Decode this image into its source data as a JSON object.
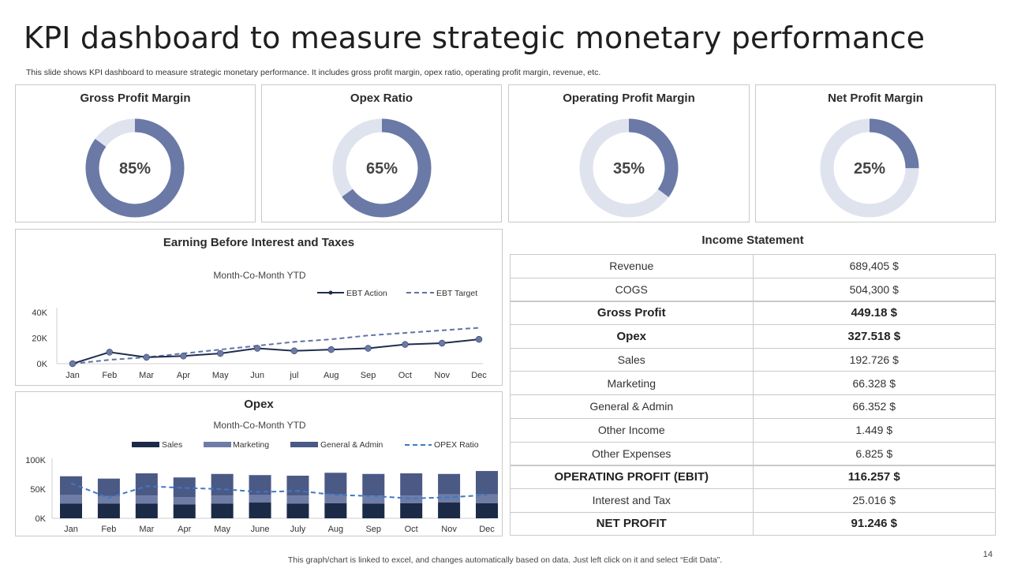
{
  "header": {
    "title": "KPI dashboard to measure strategic monetary performance",
    "subtitle": "This slide shows KPI dashboard to measure strategic monetary performance. It includes gross profit margin, opex ratio, operating profit margin, revenue, etc."
  },
  "kpis": [
    {
      "label": "Gross Profit Margin",
      "value": 85,
      "display": "85%"
    },
    {
      "label": "Opex Ratio",
      "value": 65,
      "display": "65%"
    },
    {
      "label": "Operating Profit Margin",
      "value": 35,
      "display": "35%"
    },
    {
      "label": "Net Profit Margin",
      "value": 25,
      "display": "25%"
    }
  ],
  "colors": {
    "donut_fill": "#6a79a6",
    "donut_track": "#dfe3ee",
    "line_actual": "#1f2d4f",
    "line_target": "#6073a0",
    "bar_sales": "#1b2a47",
    "bar_marketing": "#6e7ca6",
    "bar_general": "#4b5985",
    "opex_ratio": "#3d79c4"
  },
  "chart_data": [
    {
      "type": "line",
      "title": "Earning Before Interest  and Taxes",
      "subtitle": "Month-Co-Month  YTD",
      "categories": [
        "Jan",
        "Feb",
        "Mar",
        "Apr",
        "May",
        "Jun",
        "jul",
        "Aug",
        "Sep",
        "Oct",
        "Nov",
        "Dec"
      ],
      "series": [
        {
          "name": "EBT Action",
          "values": [
            0,
            9,
            5,
            6,
            8,
            12,
            10,
            11,
            12,
            15,
            16,
            19
          ]
        },
        {
          "name": "EBT Target",
          "values": [
            0,
            3,
            5,
            8,
            11,
            14,
            17,
            19,
            22,
            24,
            26,
            28
          ]
        }
      ],
      "y_ticks": [
        "0K",
        "20K",
        "40K"
      ],
      "ylim": [
        0,
        40
      ],
      "legend": "top-right",
      "grid": false
    },
    {
      "type": "bar",
      "title": "Opex",
      "subtitle": "Month-Co-Month  YTD",
      "categories": [
        "Jan",
        "Feb",
        "Mar",
        "Apr",
        "May",
        "June",
        "July",
        "Aug",
        "Sep",
        "Oct",
        "Nov",
        "Dec"
      ],
      "series": [
        {
          "name": "Sales",
          "values": [
            25,
            25,
            25,
            24,
            25,
            27,
            25,
            26,
            25,
            26,
            27,
            26
          ]
        },
        {
          "name": "Marketing",
          "values": [
            15,
            13,
            14,
            12,
            14,
            13,
            14,
            15,
            14,
            13,
            14,
            15
          ]
        },
        {
          "name": "General & Admin",
          "values": [
            32,
            30,
            38,
            34,
            37,
            34,
            34,
            37,
            37,
            38,
            35,
            40
          ]
        },
        {
          "name": "OPEX Ratio",
          "values": [
            60,
            35,
            55,
            52,
            50,
            45,
            47,
            40,
            38,
            34,
            36,
            40
          ]
        }
      ],
      "y_ticks": [
        "0K",
        "50K",
        "100K"
      ],
      "ylim": [
        0,
        100
      ],
      "legend": "top",
      "grid": false
    }
  ],
  "income": {
    "title": "Income Statement",
    "rows": [
      {
        "label": "Revenue",
        "value": "689,405 $",
        "bold": false
      },
      {
        "label": "COGS",
        "value": "504,300 $",
        "bold": false
      },
      {
        "label": "Gross Profit",
        "value": "449.18 $",
        "bold": true
      },
      {
        "label": "Opex",
        "value": "327.518 $",
        "bold": true
      },
      {
        "label": "Sales",
        "value": "192.726 $",
        "bold": false
      },
      {
        "label": "Marketing",
        "value": "66.328 $",
        "bold": false
      },
      {
        "label": "General & Admin",
        "value": "66.352 $",
        "bold": false
      },
      {
        "label": "Other Income",
        "value": "1.449 $",
        "bold": false
      },
      {
        "label": "Other Expenses",
        "value": "6.825 $",
        "bold": false
      },
      {
        "label": "OPERATING PROFIT (EBIT)",
        "value": "116.257 $",
        "bold": true
      },
      {
        "label": "Interest and Tax",
        "value": "25.016 $",
        "bold": false
      },
      {
        "label": "NET PROFIT",
        "value": "91.246 $",
        "bold": true
      }
    ]
  },
  "footer": {
    "note": "This graph/chart is linked to excel,  and changes automatically based on data. Just left click on it and select “Edit Data”.",
    "page": "14"
  }
}
